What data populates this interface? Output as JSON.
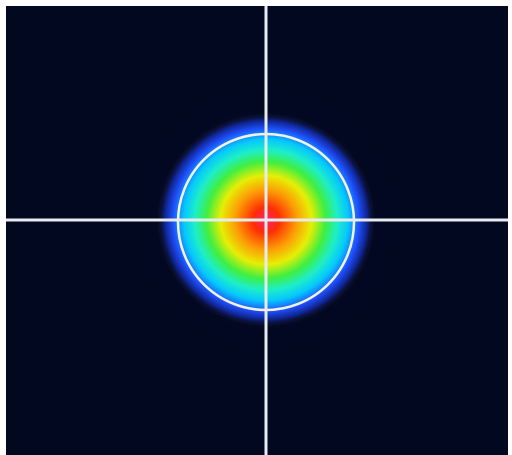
{
  "view": {
    "type": "laser-beam-profile",
    "colormap": [
      "#050a2e",
      "#0a1f8c",
      "#1a4dff",
      "#00c8ff",
      "#19f0c8",
      "#3cf03c",
      "#e8f000",
      "#ff9a00",
      "#ff2a00",
      "#ff1e6e"
    ],
    "background_color": "#030821",
    "frame_color": "#ffffff",
    "crosshair_color": "#e8ecef",
    "aperture_circle_color": "#f4f1e6"
  }
}
